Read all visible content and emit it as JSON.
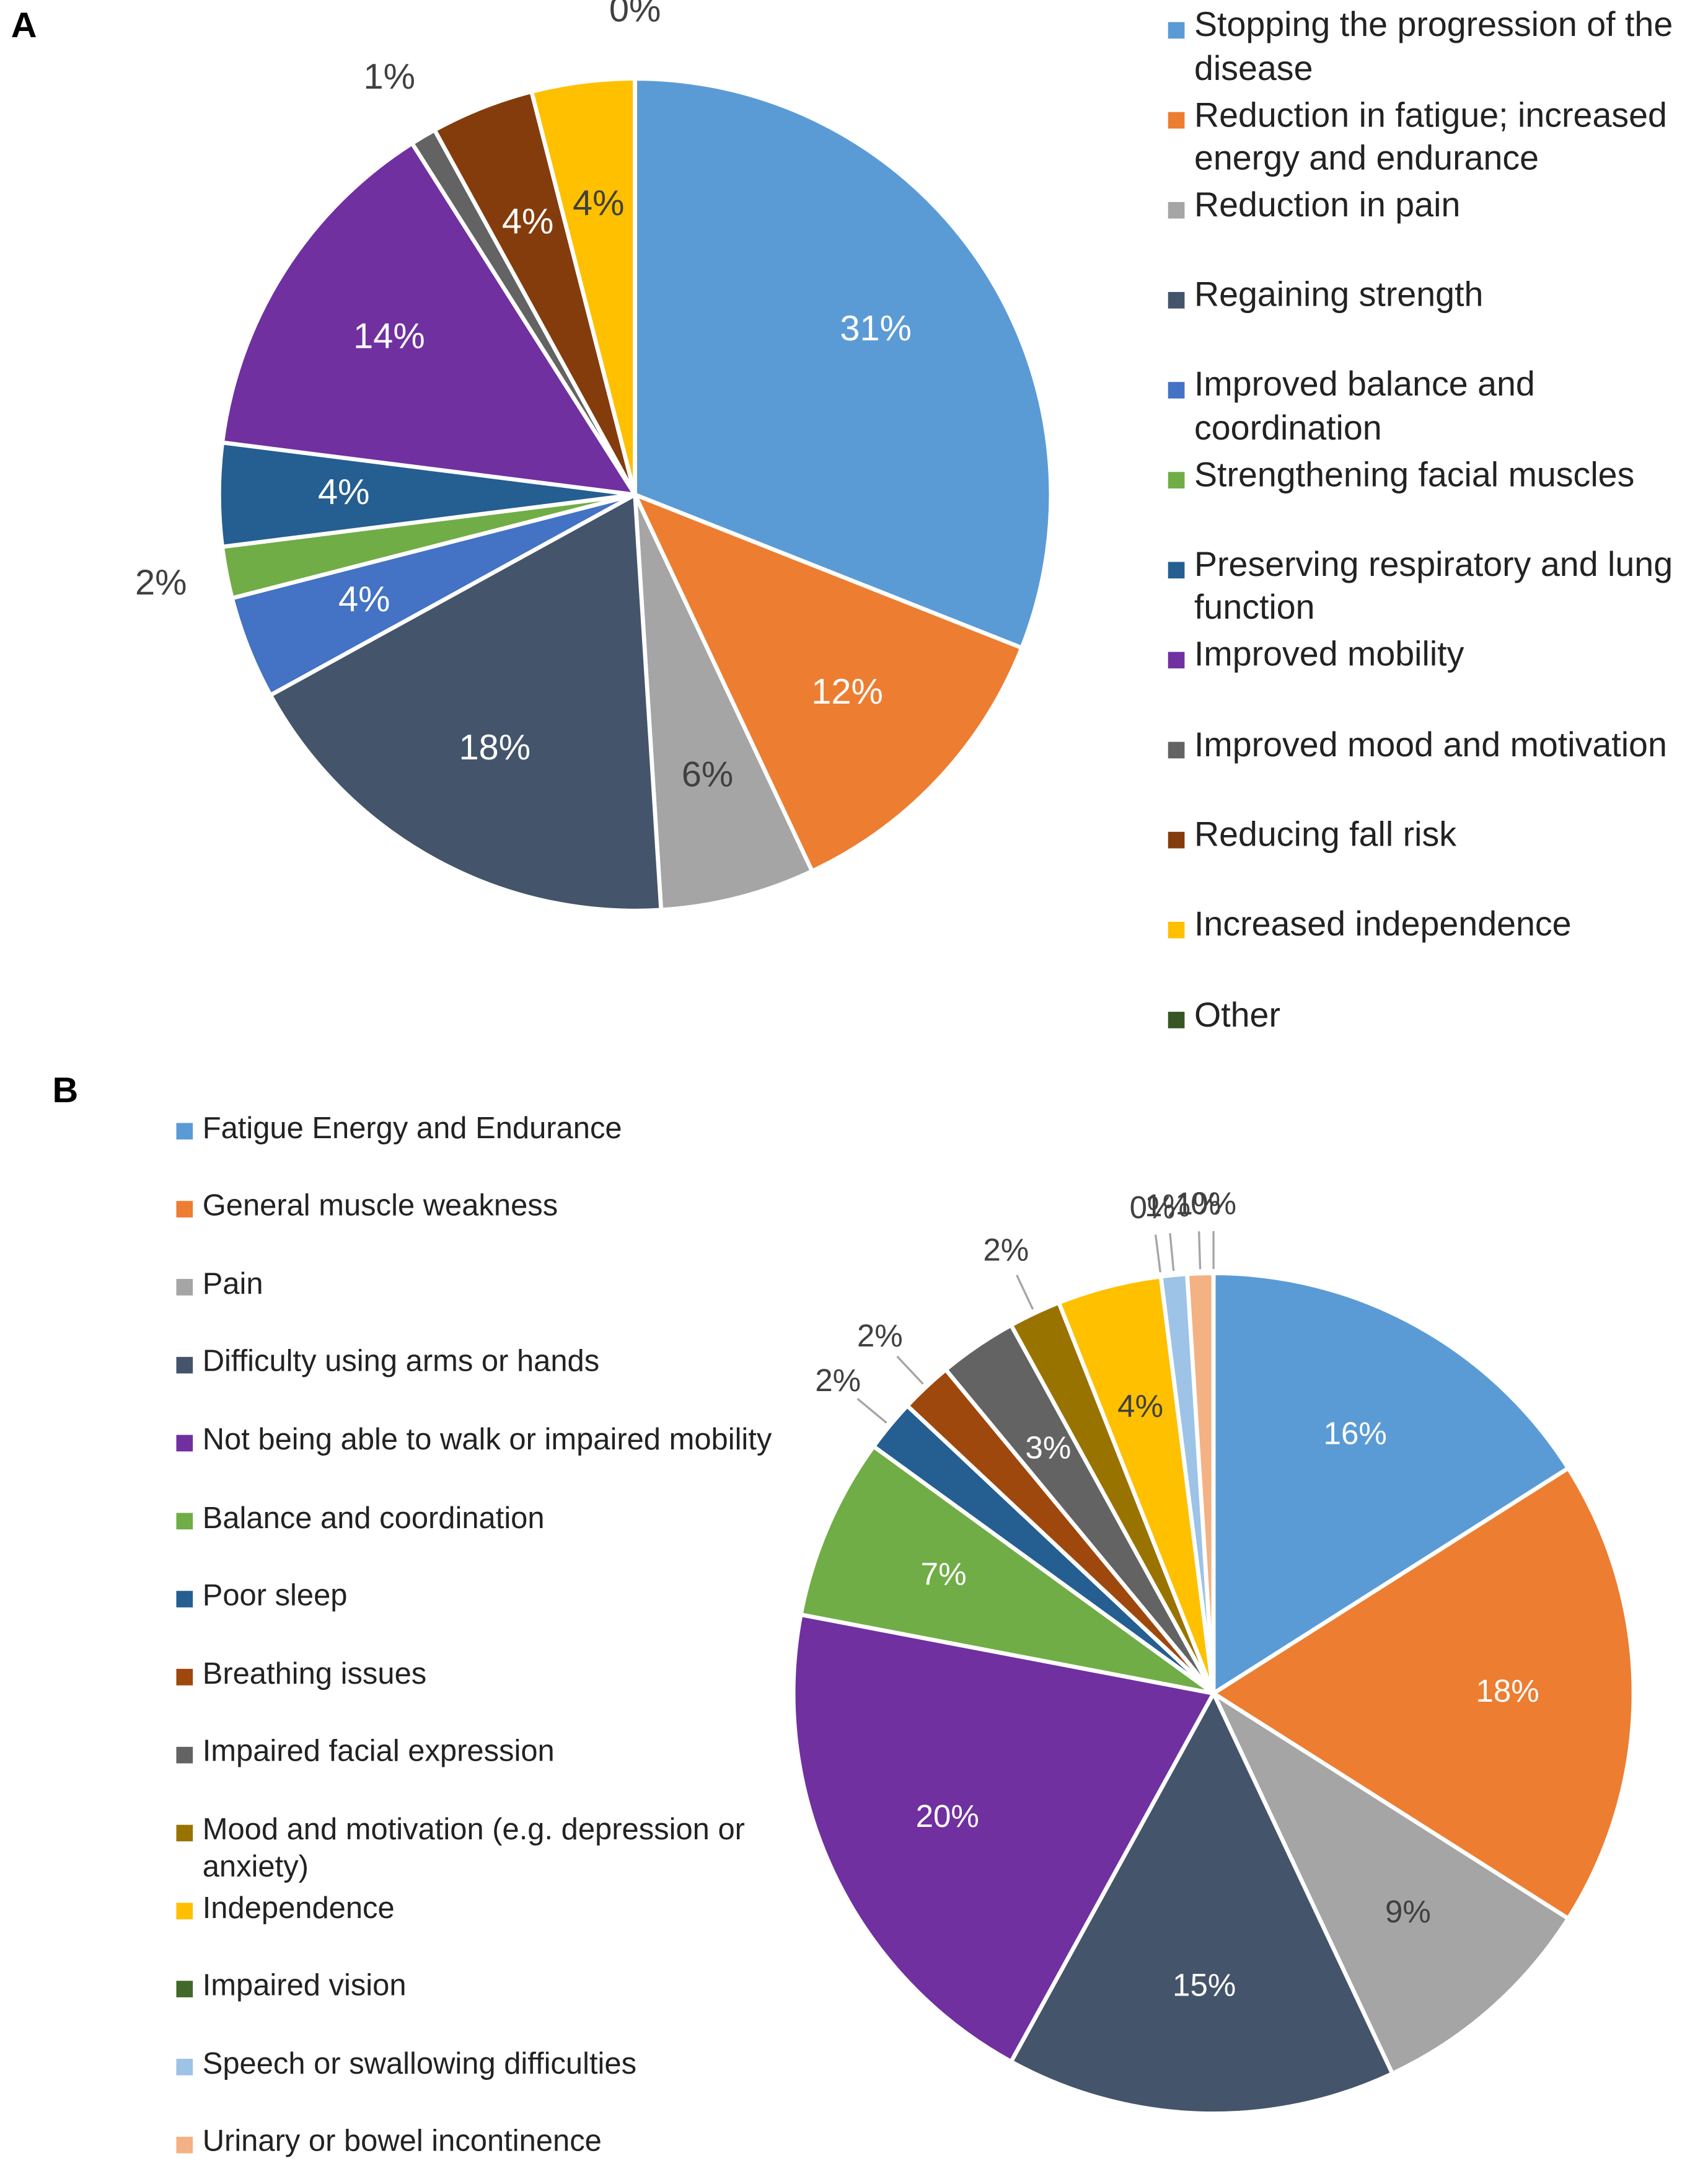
{
  "chart_data": [
    {
      "type": "pie",
      "title": "A",
      "categories": [
        "Stopping the progression of the disease",
        "Reduction in fatigue; increased energy and endurance",
        "Reduction in pain",
        "Regaining strength",
        "Improved balance and coordination",
        "Strengthening facial muscles",
        "Preserving respiratory and lung function",
        "Improved mobility",
        "Improved mood and motivation",
        "Reducing fall risk",
        "Increased independence",
        "Other"
      ],
      "values": [
        31,
        12,
        6,
        18,
        4,
        2,
        4,
        14,
        1,
        4,
        4,
        0
      ],
      "value_labels": [
        "31%",
        "12%",
        "6%",
        "18%",
        "4%",
        "2%",
        "4%",
        "14%",
        "1%",
        "4%",
        "4%",
        "0%"
      ],
      "colors": [
        "#5b9bd5",
        "#ed7d31",
        "#a5a5a5",
        "#44546a",
        "#4472c4",
        "#70ad47",
        "#255e91",
        "#7030a0",
        "#636363",
        "#843c0c",
        "#ffc000",
        "#375623"
      ],
      "legend": "right"
    },
    {
      "type": "pie",
      "title": "B",
      "categories": [
        "Fatigue Energy and Endurance",
        "General muscle weakness",
        "Pain",
        "Difficulty using arms or hands",
        "Not being able to walk or impaired mobility",
        "Balance and coordination",
        "Poor sleep",
        "Breathing issues",
        "Impaired facial expression",
        "Mood and motivation (e.g. depression or anxiety)",
        "Independence",
        "Impaired vision",
        "Speech or swallowing difficulties",
        "Urinary or bowel incontinence",
        null
      ],
      "values": [
        16,
        18,
        9,
        15,
        20,
        7,
        2,
        2,
        3,
        2,
        4,
        0,
        1,
        1,
        0
      ],
      "value_labels": [
        "16%",
        "18%",
        "9%",
        "15%",
        "20%",
        "7%",
        "2%",
        "2%",
        "3%",
        "2%",
        "4%",
        "0%",
        "1%",
        "1%",
        "0%"
      ],
      "colors": [
        "#5b9bd5",
        "#ed7d31",
        "#a5a5a5",
        "#44546a",
        "#7030a0",
        "#70ad47",
        "#255e91",
        "#9e480e",
        "#636363",
        "#997300",
        "#ffc000",
        "#43682b",
        "#9dc3e6",
        "#f4b183",
        "#c9c9c9"
      ],
      "legend": "left"
    }
  ]
}
